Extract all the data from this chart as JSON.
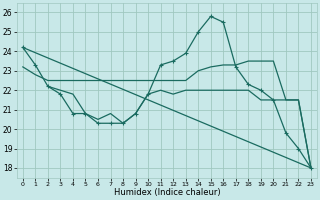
{
  "xlabel": "Humidex (Indice chaleur)",
  "xlim": [
    -0.5,
    23.5
  ],
  "ylim": [
    17.5,
    26.5
  ],
  "yticks": [
    18,
    19,
    20,
    21,
    22,
    23,
    24,
    25,
    26
  ],
  "xticks": [
    0,
    1,
    2,
    3,
    4,
    5,
    6,
    7,
    8,
    9,
    10,
    11,
    12,
    13,
    14,
    15,
    16,
    17,
    18,
    19,
    20,
    21,
    22,
    23
  ],
  "bg_color": "#c8e8e8",
  "grid_color": "#a0c8c0",
  "line_color": "#1a6b60",
  "lines": [
    {
      "x": [
        0,
        1,
        2,
        3,
        4,
        5,
        6,
        7,
        8,
        9,
        10,
        11,
        12,
        13,
        14,
        15,
        16,
        17,
        18,
        19,
        20,
        21,
        22,
        23
      ],
      "y": [
        24.2,
        23.3,
        22.2,
        21.8,
        20.8,
        20.8,
        20.3,
        20.3,
        20.3,
        20.8,
        21.8,
        23.3,
        23.5,
        23.9,
        25.0,
        25.8,
        25.5,
        23.2,
        22.3,
        22.0,
        21.5,
        19.8,
        19.0,
        18.0
      ],
      "marker": "+"
    },
    {
      "x": [
        0,
        23
      ],
      "y": [
        24.2,
        18.0
      ],
      "marker": null
    },
    {
      "x": [
        0,
        1,
        2,
        3,
        4,
        5,
        6,
        7,
        8,
        9,
        10,
        11,
        12,
        13,
        14,
        15,
        16,
        17,
        18,
        19,
        20,
        21,
        22,
        23
      ],
      "y": [
        23.2,
        22.8,
        22.5,
        22.5,
        22.5,
        22.5,
        22.5,
        22.5,
        22.5,
        22.5,
        22.5,
        22.5,
        22.5,
        22.5,
        23.0,
        23.2,
        23.3,
        23.3,
        23.5,
        23.5,
        23.5,
        21.5,
        21.5,
        18.0
      ],
      "marker": null
    },
    {
      "x": [
        2,
        3,
        4,
        5,
        6,
        7,
        8,
        9,
        10,
        11,
        12,
        13,
        14,
        15,
        16,
        17,
        18,
        19,
        20,
        21,
        22,
        23
      ],
      "y": [
        22.2,
        22.0,
        21.8,
        20.8,
        20.5,
        20.8,
        20.3,
        20.8,
        21.8,
        22.0,
        21.8,
        22.0,
        22.0,
        22.0,
        22.0,
        22.0,
        22.0,
        21.5,
        21.5,
        21.5,
        21.5,
        18.0
      ],
      "marker": null
    }
  ]
}
